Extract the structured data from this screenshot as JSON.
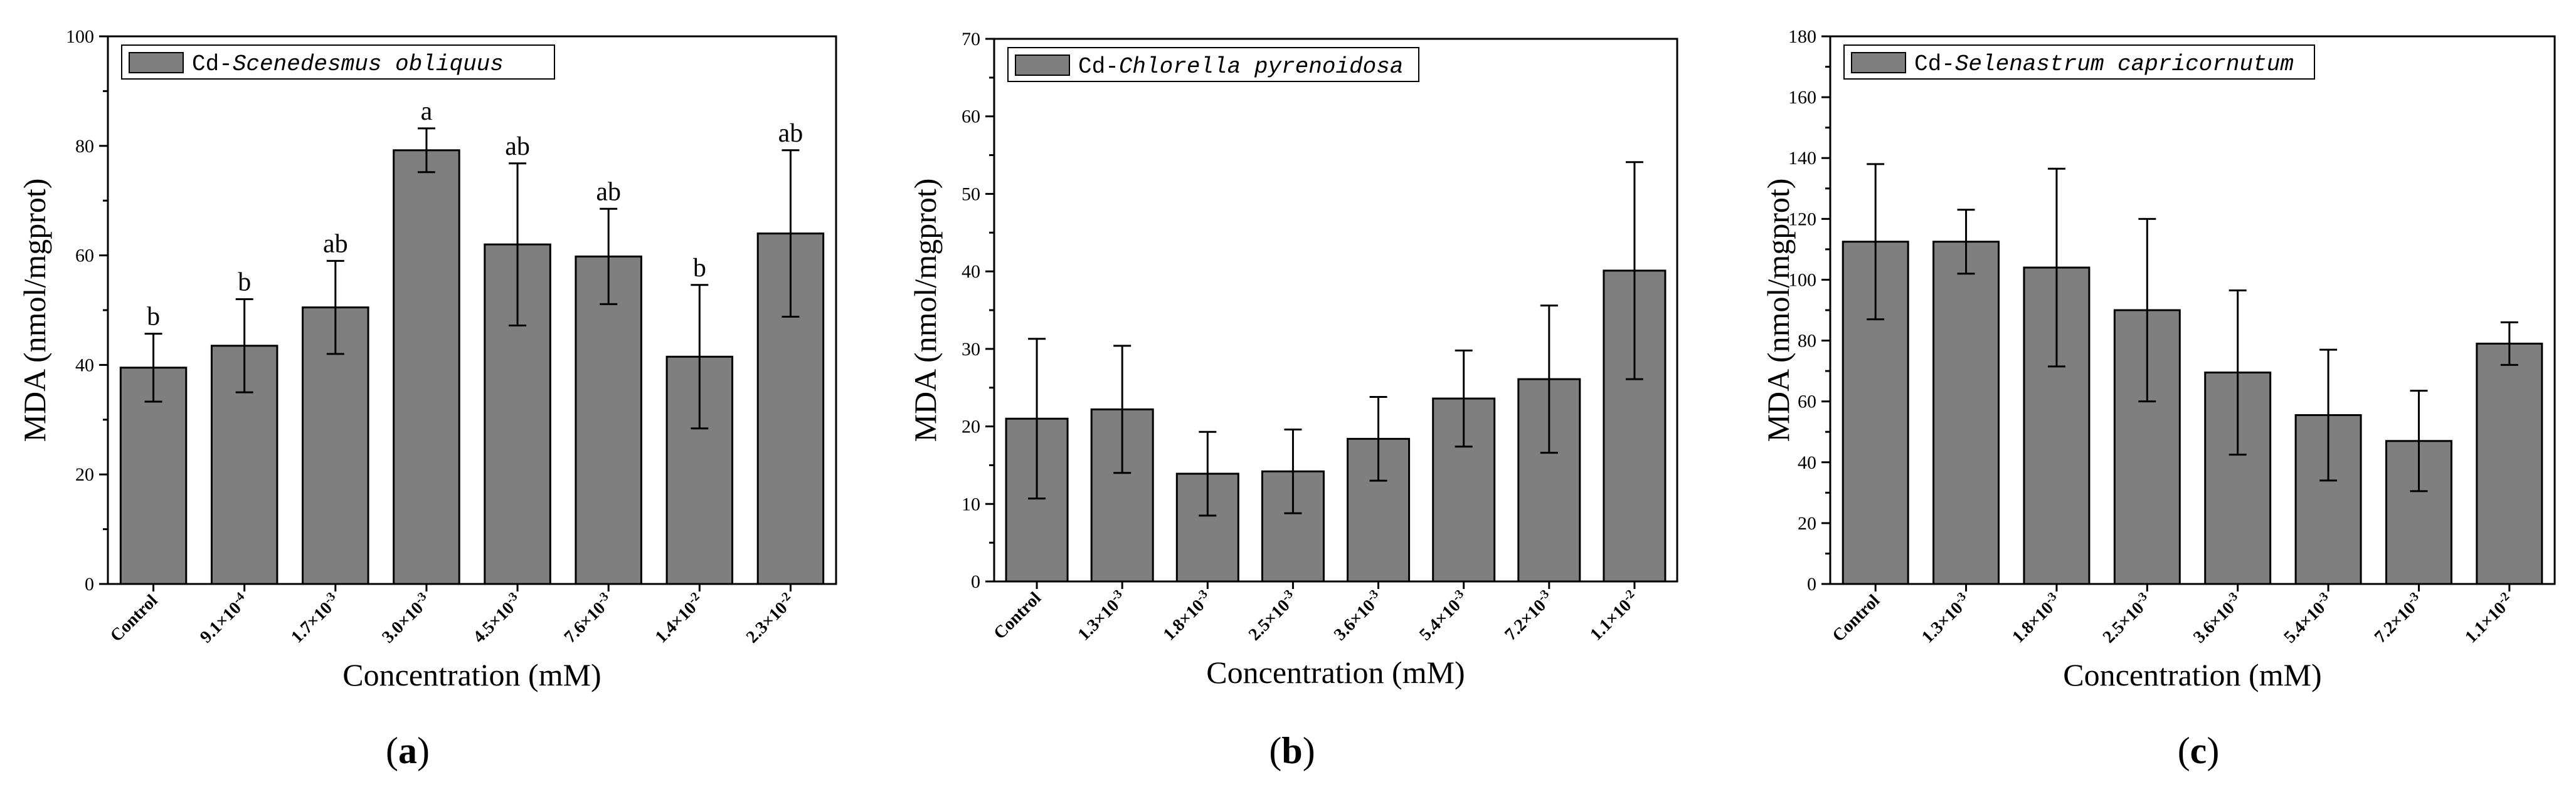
{
  "figure_title": "",
  "chart_data": [
    {
      "type": "bar",
      "panel_label": "a",
      "legend": {
        "prefix": "Cd-",
        "species": "Scenedesmus obliquus"
      },
      "xlabel": "Concentration (mM)",
      "ylabel": "MDA (nmol/mgprot)",
      "ylim": [
        0,
        100
      ],
      "yticks": [
        0,
        20,
        40,
        60,
        80,
        100
      ],
      "ytick_labels": [
        "0",
        "20",
        "40",
        "60",
        "80",
        "100"
      ],
      "bar_color": "#7f7f7f",
      "categories": [
        {
          "base": "Control",
          "exp": ""
        },
        {
          "base": "9.1×10",
          "exp": "-4"
        },
        {
          "base": "1.7×10",
          "exp": "-3"
        },
        {
          "base": "3.0×10",
          "exp": "-3"
        },
        {
          "base": "4.5×10",
          "exp": "-3"
        },
        {
          "base": "7.6×10",
          "exp": "-3"
        },
        {
          "base": "1.4×10",
          "exp": "-2"
        },
        {
          "base": "2.3×10",
          "exp": "-2"
        }
      ],
      "values": [
        39.5,
        43.5,
        50.5,
        79.2,
        62.0,
        59.8,
        41.5,
        64.0
      ],
      "errors": [
        6.2,
        8.5,
        8.5,
        4.0,
        14.8,
        8.7,
        13.1,
        15.2
      ],
      "significance": [
        "b",
        "b",
        "ab",
        "a",
        "ab",
        "ab",
        "b",
        "ab"
      ]
    },
    {
      "type": "bar",
      "panel_label": "b",
      "legend": {
        "prefix": "Cd-",
        "species": "Chlorella pyrenoidosa"
      },
      "xlabel": "Concentration (mM)",
      "ylabel": "MDA (nmol/mgprot)",
      "ylim": [
        0,
        70
      ],
      "yticks": [
        0,
        10,
        20,
        30,
        40,
        50,
        60,
        70
      ],
      "ytick_labels": [
        "0",
        "10",
        "20",
        "30",
        "40",
        "50",
        "60",
        "70"
      ],
      "bar_color": "#7f7f7f",
      "categories": [
        {
          "base": "Control",
          "exp": ""
        },
        {
          "base": "1.3×10",
          "exp": "-3"
        },
        {
          "base": "1.8×10",
          "exp": "-3"
        },
        {
          "base": "2.5×10",
          "exp": "-3"
        },
        {
          "base": "3.6×10",
          "exp": "-3"
        },
        {
          "base": "5.4×10",
          "exp": "-3"
        },
        {
          "base": "7.2×10",
          "exp": "-3"
        },
        {
          "base": "1.1×10",
          "exp": "-2"
        }
      ],
      "values": [
        21.0,
        22.2,
        13.9,
        14.2,
        18.4,
        23.6,
        26.1,
        40.1
      ],
      "errors": [
        10.3,
        8.2,
        5.4,
        5.4,
        5.4,
        6.2,
        9.5,
        14.0
      ],
      "significance": []
    },
    {
      "type": "bar",
      "panel_label": "c",
      "legend": {
        "prefix": "Cd-",
        "species": "Selenastrum capricornutum"
      },
      "xlabel": "Concentration (mM)",
      "ylabel": "MDA (nmol/mgprot)",
      "ylim": [
        0,
        180
      ],
      "yticks": [
        0,
        20,
        40,
        60,
        80,
        100,
        120,
        140,
        160,
        180
      ],
      "ytick_labels": [
        "0",
        "20",
        "40",
        "60",
        "80",
        "100",
        "120",
        "140",
        "160",
        "180"
      ],
      "bar_color": "#7f7f7f",
      "categories": [
        {
          "base": "Control",
          "exp": ""
        },
        {
          "base": "1.3×10",
          "exp": "-3"
        },
        {
          "base": "1.8×10",
          "exp": "-3"
        },
        {
          "base": "2.5×10",
          "exp": "-3"
        },
        {
          "base": "3.6×10",
          "exp": "-3"
        },
        {
          "base": "5.4×10",
          "exp": "-3"
        },
        {
          "base": "7.2×10",
          "exp": "-3"
        },
        {
          "base": "1.1×10",
          "exp": "-2"
        }
      ],
      "values": [
        112.5,
        112.5,
        104.0,
        90.0,
        69.5,
        55.5,
        47.0,
        79.0
      ],
      "errors": [
        25.5,
        10.5,
        32.5,
        30.0,
        27.0,
        21.5,
        16.5,
        7.0
      ],
      "significance": []
    }
  ]
}
